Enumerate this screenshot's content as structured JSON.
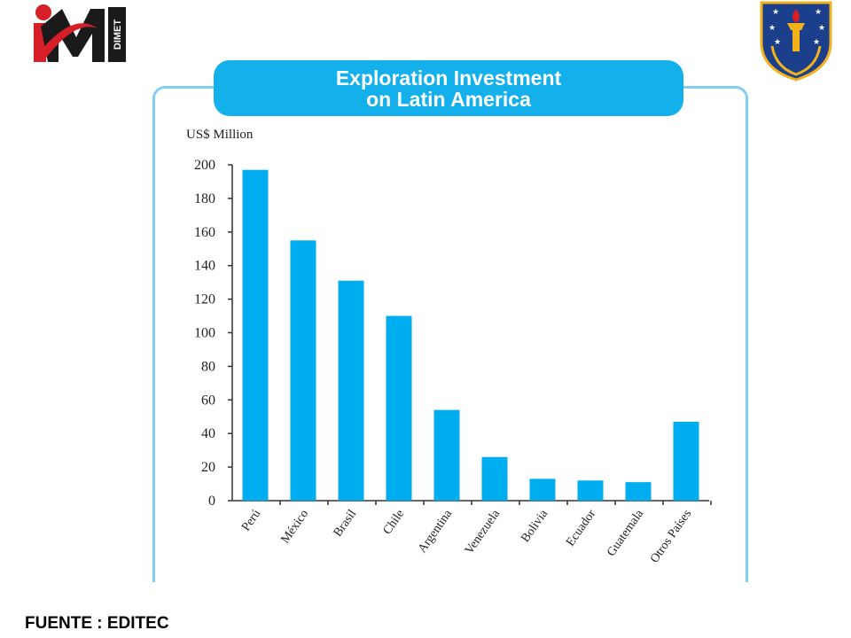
{
  "logos": {
    "left_text": "DIMET"
  },
  "source_text": "FUENTE : EDITEC",
  "colors": {
    "bar": "#00aeef",
    "title_bg": "#13b0ec",
    "panel_border": "#7fd0f2",
    "logo_red": "#d61f26",
    "logo_dark": "#1a1a1a",
    "crest_blue": "#1c3f8c",
    "crest_gold": "#f2b21c"
  },
  "chart_data": {
    "type": "bar",
    "title": "Exploration Investment on Latin America",
    "title_lines": [
      "Exploration Investment",
      "on Latin America"
    ],
    "ylabel": "US$ Million",
    "xlabel": "",
    "ylim": [
      0,
      200
    ],
    "yticks": [
      0,
      20,
      40,
      60,
      80,
      100,
      120,
      140,
      160,
      180,
      200
    ],
    "categories": [
      "Perú",
      "México",
      "Brasil",
      "Chile",
      "Argentina",
      "Venezuela",
      "Bolivia",
      "Ecuador",
      "Guatemala",
      "Otros Países"
    ],
    "values": [
      197,
      155,
      131,
      110,
      54,
      26,
      13,
      12,
      11,
      47
    ],
    "grid": false,
    "legend": "none"
  }
}
